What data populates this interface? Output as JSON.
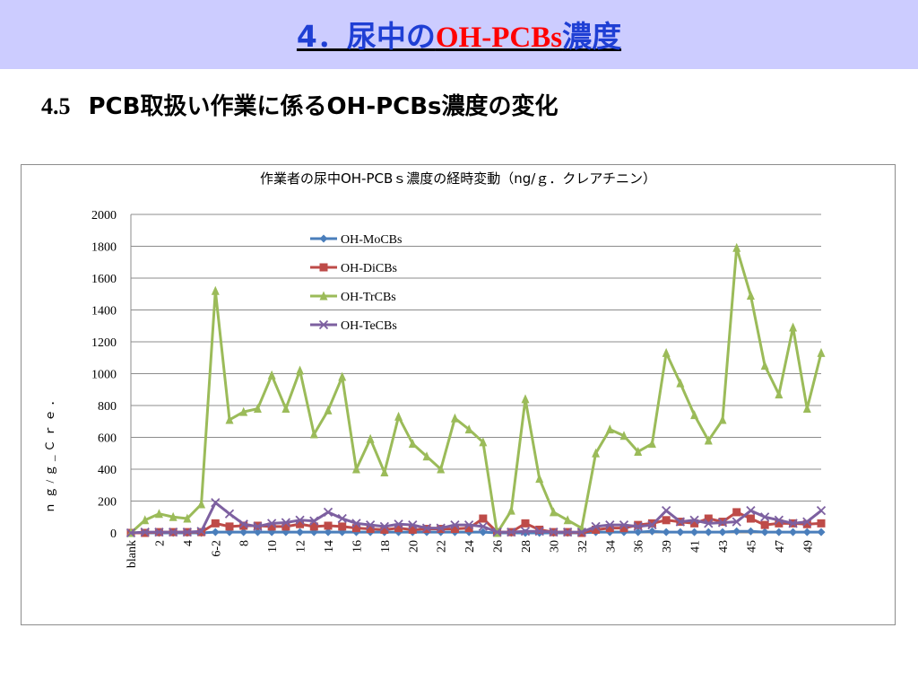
{
  "slide": {
    "title_prefix": "4．尿中の",
    "title_red": "OH-PCBs",
    "title_suffix": "濃度",
    "section_number": "4.5",
    "section_title": "PCB取扱い作業に係るOH-PCBs濃度の変化"
  },
  "chart_data": {
    "type": "line",
    "title": "作業者の尿中OH-PCBｓ濃度の経時変動（ng/ｇ．クレアチニン）",
    "ylabel": "ｎｇ/ｇ_Ｃｒｅ．",
    "xlabel": "",
    "ylim": [
      0,
      2000
    ],
    "yticks": [
      0,
      200,
      400,
      600,
      800,
      1000,
      1200,
      1400,
      1600,
      1800,
      2000
    ],
    "grid": true,
    "legend_position": "top-center",
    "categories": [
      "blank",
      "1",
      "2",
      "3",
      "4",
      "5",
      "6-2",
      "7",
      "8",
      "9",
      "10",
      "11",
      "12",
      "13",
      "14",
      "15",
      "16",
      "17",
      "18",
      "19",
      "20",
      "21",
      "22",
      "23",
      "24",
      "25",
      "26",
      "27",
      "28",
      "29",
      "30",
      "31",
      "32",
      "33",
      "34",
      "35",
      "36",
      "37",
      "39",
      "40",
      "41",
      "42",
      "43",
      "44",
      "45",
      "46",
      "47",
      "48",
      "49",
      "50"
    ],
    "shown_tick_labels": [
      "blank",
      "2",
      "4",
      "6-2",
      "8",
      "10",
      "12",
      "14",
      "16",
      "18",
      "20",
      "22",
      "24",
      "26",
      "28",
      "30",
      "32",
      "34",
      "36",
      "39",
      "41",
      "43",
      "45",
      "47",
      "49"
    ],
    "series": [
      {
        "name": "OH-MoCBs",
        "color": "#4a7ebb",
        "marker": "diamond",
        "values": [
          0,
          0,
          0,
          0,
          0,
          0,
          5,
          5,
          5,
          5,
          5,
          5,
          5,
          5,
          5,
          5,
          5,
          5,
          5,
          5,
          5,
          5,
          5,
          5,
          5,
          5,
          0,
          0,
          0,
          0,
          0,
          0,
          0,
          5,
          5,
          5,
          5,
          10,
          5,
          5,
          5,
          5,
          5,
          10,
          10,
          5,
          5,
          5,
          5,
          5
        ]
      },
      {
        "name": "OH-DiCBs",
        "color": "#be4b48",
        "marker": "square",
        "values": [
          0,
          0,
          5,
          5,
          5,
          5,
          60,
          40,
          45,
          45,
          40,
          40,
          55,
          40,
          45,
          40,
          30,
          25,
          20,
          30,
          20,
          25,
          25,
          25,
          30,
          90,
          5,
          5,
          60,
          20,
          5,
          5,
          0,
          20,
          30,
          30,
          50,
          60,
          80,
          70,
          60,
          90,
          70,
          130,
          90,
          50,
          60,
          60,
          55,
          60
        ]
      },
      {
        "name": "OH-TrCBs",
        "color": "#9bbb59",
        "marker": "triangle",
        "values": [
          0,
          80,
          120,
          100,
          90,
          180,
          1520,
          710,
          760,
          780,
          990,
          780,
          1020,
          620,
          770,
          980,
          400,
          590,
          380,
          730,
          560,
          480,
          400,
          720,
          650,
          570,
          0,
          140,
          840,
          340,
          130,
          80,
          30,
          500,
          650,
          610,
          510,
          560,
          1130,
          940,
          740,
          580,
          710,
          1790,
          1490,
          1050,
          870,
          1290,
          780,
          1130
        ]
      },
      {
        "name": "OH-TeCBs",
        "color": "#7d60a0",
        "marker": "x",
        "values": [
          0,
          5,
          5,
          5,
          5,
          10,
          190,
          120,
          55,
          40,
          60,
          65,
          80,
          75,
          130,
          90,
          60,
          50,
          40,
          55,
          50,
          30,
          30,
          50,
          50,
          40,
          5,
          5,
          10,
          10,
          5,
          5,
          5,
          40,
          50,
          50,
          40,
          50,
          140,
          70,
          80,
          60,
          65,
          70,
          140,
          100,
          80,
          60,
          70,
          140
        ]
      }
    ]
  }
}
